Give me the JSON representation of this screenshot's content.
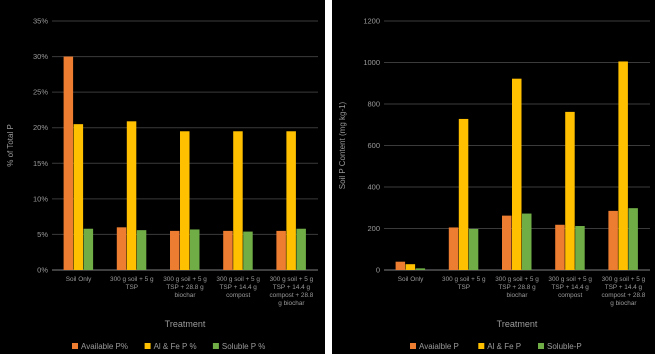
{
  "chart_data": [
    {
      "type": "bar",
      "title": "",
      "xlabel": "Treatment",
      "ylabel": "% of Total P",
      "ylim": [
        0,
        35
      ],
      "yticks": [
        "0%",
        "5%",
        "10%",
        "15%",
        "20%",
        "25%",
        "30%",
        "35%"
      ],
      "grid": true,
      "legend_position": "bottom",
      "categories": [
        [
          "Soil Only"
        ],
        [
          "300 g soil + 5 g",
          "TSP"
        ],
        [
          "300 g soil + 5 g",
          "TSP + 28.8 g",
          "biochar"
        ],
        [
          "300 g soil + 5 g",
          "TSP + 14.4 g",
          "compost"
        ],
        [
          "300 g soil + 5 g",
          "TSP + 14.4 g",
          "compost + 28.8",
          "g biochar"
        ]
      ],
      "series": [
        {
          "name": "Available P%",
          "color": "#ED7D31",
          "values": [
            30.0,
            6.0,
            5.5,
            5.5,
            5.5
          ]
        },
        {
          "name": "Al & Fe P %",
          "color": "#FFC000",
          "values": [
            20.5,
            20.9,
            19.5,
            19.5,
            19.5
          ]
        },
        {
          "name": "Soluble P %",
          "color": "#70AD47",
          "values": [
            5.8,
            5.6,
            5.7,
            5.4,
            5.8
          ]
        }
      ]
    },
    {
      "type": "bar",
      "title": "",
      "xlabel": "Treatment",
      "ylabel": "Soil P Content (mg kg-1)",
      "ylim": [
        0,
        1200
      ],
      "yticks": [
        "0",
        "200",
        "400",
        "600",
        "800",
        "1000",
        "1200"
      ],
      "grid": true,
      "legend_position": "bottom",
      "categories": [
        [
          "Soil Only"
        ],
        [
          "300 g soil + 5 g",
          "TSP"
        ],
        [
          "300 g soil + 5 g",
          "TSP + 28.8 g",
          "biochar"
        ],
        [
          "300 g soil + 5 g",
          "TSP + 14.4 g",
          "compost"
        ],
        [
          "300 g soil + 5 g",
          "TSP + 14.4 g",
          "compost + 28.8",
          "g biochar"
        ]
      ],
      "series": [
        {
          "name": "Avaialble P",
          "color": "#ED7D31",
          "values": [
            40,
            205,
            262,
            218,
            285
          ]
        },
        {
          "name": "Al & Fe P",
          "color": "#FFC000",
          "values": [
            28,
            728,
            922,
            762,
            1005
          ]
        },
        {
          "name": "Soluble-P",
          "color": "#70AD47",
          "values": [
            8,
            198,
            272,
            212,
            298
          ]
        }
      ]
    }
  ]
}
